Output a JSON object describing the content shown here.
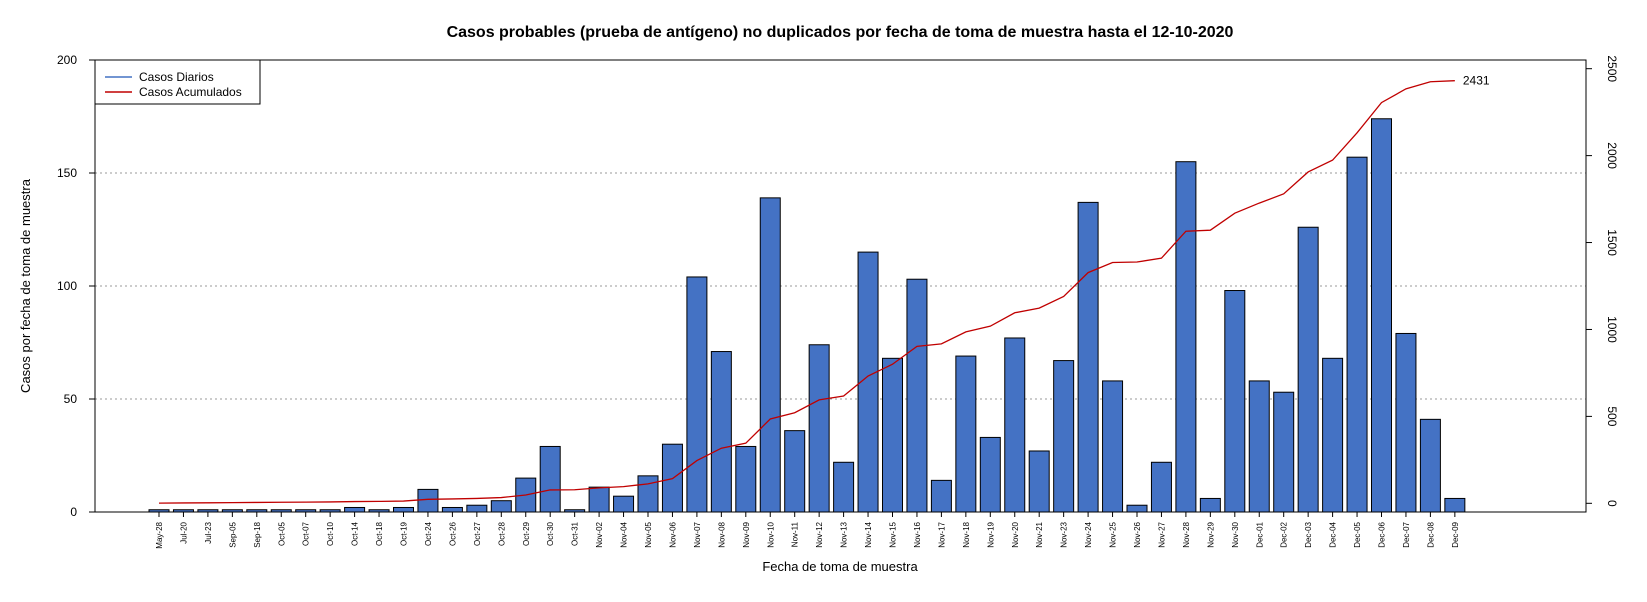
{
  "chart_data": {
    "type": "bar",
    "title": "Casos probables (prueba de antígeno) no duplicados por fecha de toma de muestra hasta el 12-10-2020",
    "xlabel": "Fecha de toma de muestra",
    "ylabel": "Casos por fecha de toma de muestra",
    "ylim": [
      0,
      200
    ],
    "yticks": [
      0,
      50,
      100,
      150,
      200
    ],
    "y2lim": [
      -50,
      2550
    ],
    "y2ticks": [
      0,
      500,
      1000,
      1500,
      2000,
      2500
    ],
    "grid": "horizontal dotted",
    "legend_position": "top-left",
    "colors": {
      "bars": "#4472C4",
      "bar_stroke": "#000000",
      "line": "#C00000",
      "grid": "#999999",
      "legend_line_1": "#4472C4",
      "legend_line_2": "#C00000"
    },
    "categories": [
      "May-28",
      "Jul-20",
      "Jul-23",
      "Sep-05",
      "Sep-18",
      "Oct-05",
      "Oct-07",
      "Oct-10",
      "Oct-14",
      "Oct-18",
      "Oct-19",
      "Oct-24",
      "Oct-26",
      "Oct-27",
      "Oct-28",
      "Oct-29",
      "Oct-30",
      "Oct-31",
      "Nov-02",
      "Nov-04",
      "Nov-05",
      "Nov-06",
      "Nov-07",
      "Nov-08",
      "Nov-09",
      "Nov-10",
      "Nov-11",
      "Nov-12",
      "Nov-13",
      "Nov-14",
      "Nov-15",
      "Nov-16",
      "Nov-17",
      "Nov-18",
      "Nov-19",
      "Nov-20",
      "Nov-21",
      "Nov-23",
      "Nov-24",
      "Nov-25",
      "Nov-26",
      "Nov-27",
      "Nov-28",
      "Nov-29",
      "Nov-30",
      "Dec-01",
      "Dec-02",
      "Dec-03",
      "Dec-04",
      "Dec-05",
      "Dec-06",
      "Dec-07",
      "Dec-08",
      "Dec-09"
    ],
    "series": [
      {
        "name": "Casos Diarios",
        "axis": "left",
        "style": "bar",
        "values": [
          1,
          1,
          1,
          1,
          1,
          1,
          1,
          1,
          2,
          1,
          2,
          10,
          2,
          3,
          5,
          15,
          29,
          1,
          11,
          7,
          16,
          30,
          104,
          71,
          29,
          139,
          36,
          74,
          22,
          115,
          68,
          103,
          14,
          69,
          33,
          77,
          27,
          67,
          137,
          58,
          3,
          22,
          155,
          6,
          98,
          58,
          53,
          126,
          68,
          157,
          174,
          79,
          41,
          6
        ]
      },
      {
        "name": "Casos Acumulados",
        "axis": "right",
        "style": "line",
        "values": [
          1,
          2,
          3,
          4,
          5,
          6,
          7,
          8,
          10,
          11,
          13,
          23,
          25,
          28,
          33,
          48,
          77,
          78,
          89,
          96,
          112,
          142,
          246,
          317,
          346,
          485,
          521,
          595,
          617,
          732,
          800,
          903,
          917,
          986,
          1019,
          1096,
          1123,
          1190,
          1327,
          1385,
          1388,
          1410,
          1565,
          1571,
          1669,
          1727,
          1780,
          1906,
          1974,
          2131,
          2305,
          2384,
          2425,
          2431
        ]
      }
    ],
    "end_label": "2431",
    "legend": [
      "Casos Diarios",
      "Casos Acumulados"
    ]
  }
}
